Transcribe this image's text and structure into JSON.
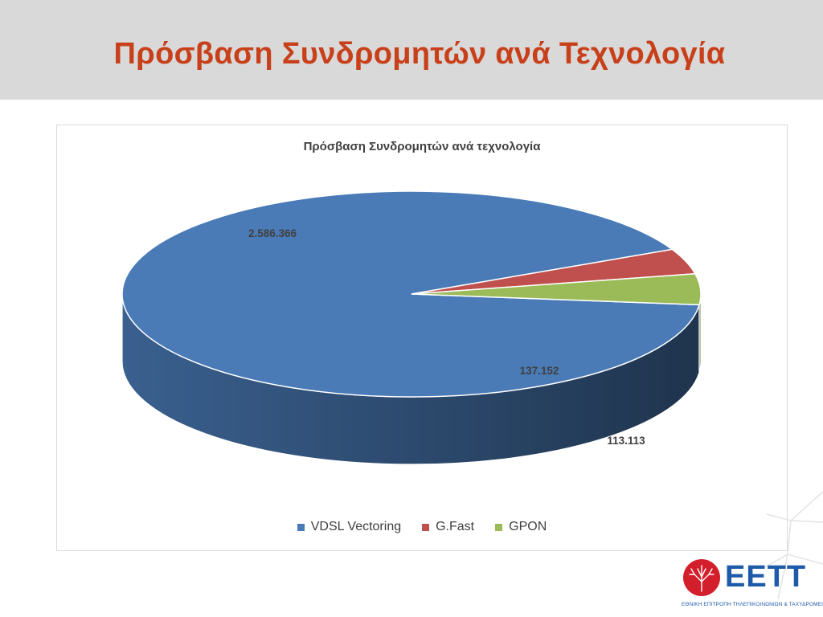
{
  "slide": {
    "title": "Πρόσβαση Συνδρομητών ανά Τεχνολογία"
  },
  "chart_data": {
    "type": "pie",
    "style": "3d",
    "title": "Πρόσβαση Συνδρομητών ανά τεχνολογία",
    "legend_position": "bottom",
    "series": [
      {
        "name": "VDSL Vectoring",
        "value": 2586366,
        "label": "2.586.366",
        "color": "#4a7bb7"
      },
      {
        "name": "G.Fast",
        "value": 113113,
        "label": "113.113",
        "color": "#c0504d"
      },
      {
        "name": "GPON",
        "value": 137152,
        "label": "137.152",
        "color": "#9bbb59"
      }
    ]
  },
  "logo": {
    "name": "ΕΕΤΤ",
    "subtitle": "ΕΘΝΙΚΗ ΕΠΙΤΡΟΠΗ ΤΗΛΕΠΙΚΟΙΝΩΝΙΩΝ & ΤΑΧΥΔΡΟΜΕΙΩΝ"
  }
}
